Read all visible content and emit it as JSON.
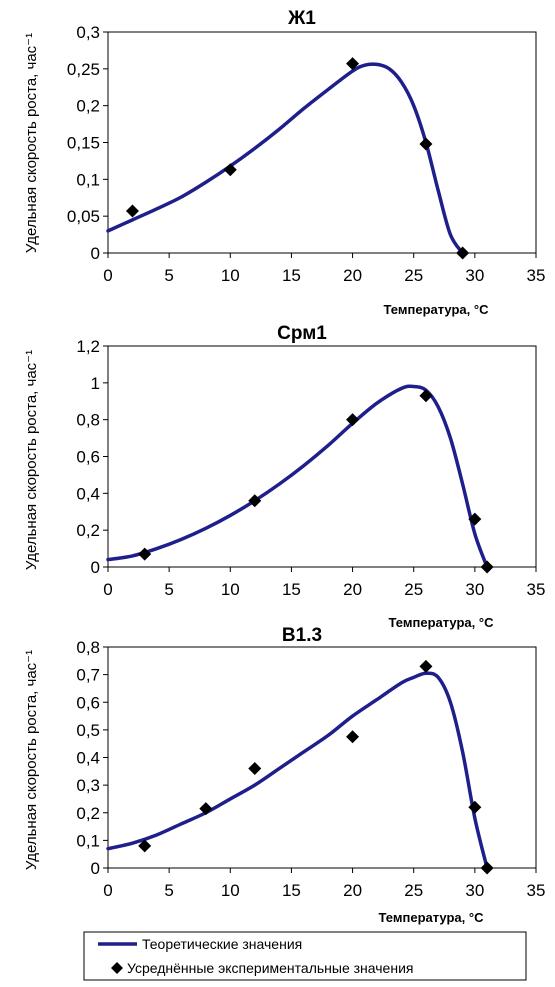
{
  "chart_data": [
    {
      "type": "line",
      "title": "Ж1",
      "xlabel": "Температура, °С",
      "ylabel": "Удельная скорость роста, час⁻¹",
      "xlim": [
        0,
        35
      ],
      "ylim": [
        0,
        0.3
      ],
      "x_ticks": [
        "0",
        "5",
        "10",
        "15",
        "20",
        "25",
        "30",
        "35"
      ],
      "y_ticks": [
        "0",
        "0,05",
        "0,1",
        "0,15",
        "0,2",
        "0,25",
        "0,3"
      ],
      "grid": false,
      "series": [
        {
          "name": "Теоретические значения",
          "type": "line",
          "color": "#1f1f8c",
          "x": [
            0,
            2,
            4,
            6,
            8,
            10,
            12,
            14,
            16,
            18,
            20,
            21,
            22,
            23,
            24,
            25,
            26,
            27,
            28,
            29
          ],
          "y": [
            0.03,
            0.045,
            0.06,
            0.076,
            0.096,
            0.118,
            0.142,
            0.168,
            0.196,
            0.222,
            0.247,
            0.255,
            0.256,
            0.25,
            0.232,
            0.2,
            0.15,
            0.085,
            0.025,
            0.0
          ]
        },
        {
          "name": "Усреднённые экспериментальные значения",
          "type": "scatter",
          "marker": "diamond",
          "color": "#000000",
          "x": [
            2,
            10,
            20,
            26,
            29
          ],
          "y": [
            0.057,
            0.113,
            0.257,
            0.148,
            0.0
          ]
        }
      ]
    },
    {
      "type": "line",
      "title": "Срм1",
      "xlabel": "Температура, °С",
      "ylabel": "Удельная скорость роста, час⁻¹",
      "xlim": [
        0,
        35
      ],
      "ylim": [
        0,
        1.2
      ],
      "x_ticks": [
        "0",
        "5",
        "10",
        "15",
        "20",
        "25",
        "30",
        "35"
      ],
      "y_ticks": [
        "0",
        "0,2",
        "0,4",
        "0,6",
        "0,8",
        "1",
        "1,2"
      ],
      "grid": false,
      "series": [
        {
          "name": "Теоретические значения",
          "type": "line",
          "color": "#1f1f8c",
          "x": [
            0,
            2,
            4,
            6,
            8,
            10,
            12,
            14,
            16,
            18,
            20,
            22,
            24,
            25,
            26,
            27,
            28,
            29,
            30,
            31
          ],
          "y": [
            0.04,
            0.06,
            0.1,
            0.15,
            0.21,
            0.28,
            0.36,
            0.45,
            0.55,
            0.66,
            0.78,
            0.89,
            0.97,
            0.98,
            0.96,
            0.87,
            0.7,
            0.45,
            0.18,
            0.0
          ]
        },
        {
          "name": "Усреднённые экспериментальные значения",
          "type": "scatter",
          "marker": "diamond",
          "color": "#000000",
          "x": [
            3,
            12,
            20,
            26,
            30,
            31
          ],
          "y": [
            0.07,
            0.36,
            0.8,
            0.93,
            0.26,
            0.0
          ]
        }
      ]
    },
    {
      "type": "line",
      "title": "В1.3",
      "xlabel": "Температура, °С",
      "ylabel": "Удельная скорость роста, час⁻¹",
      "xlim": [
        0,
        35
      ],
      "ylim": [
        0,
        0.8
      ],
      "x_ticks": [
        "0",
        "5",
        "10",
        "15",
        "20",
        "25",
        "30",
        "35"
      ],
      "y_ticks": [
        "0",
        "0,1",
        "0,2",
        "0,3",
        "0,4",
        "0,5",
        "0,6",
        "0,7",
        "0,8"
      ],
      "grid": false,
      "series": [
        {
          "name": "Теоретические значения",
          "type": "line",
          "color": "#1f1f8c",
          "x": [
            0,
            2,
            4,
            6,
            8,
            10,
            12,
            14,
            16,
            18,
            20,
            22,
            24,
            25,
            26,
            27,
            28,
            29,
            30,
            31
          ],
          "y": [
            0.07,
            0.09,
            0.12,
            0.16,
            0.2,
            0.25,
            0.3,
            0.36,
            0.42,
            0.48,
            0.55,
            0.61,
            0.67,
            0.69,
            0.705,
            0.69,
            0.6,
            0.42,
            0.18,
            0.0
          ]
        },
        {
          "name": "Усреднённые экспериментальные значения",
          "type": "scatter",
          "marker": "diamond",
          "color": "#000000",
          "x": [
            3,
            8,
            12,
            20,
            26,
            30,
            31
          ],
          "y": [
            0.08,
            0.215,
            0.36,
            0.475,
            0.73,
            0.22,
            0.0
          ]
        }
      ]
    }
  ],
  "legend": {
    "line_label": "Теоретические значения",
    "marker_label": "Усреднённые экспериментальные значения"
  }
}
